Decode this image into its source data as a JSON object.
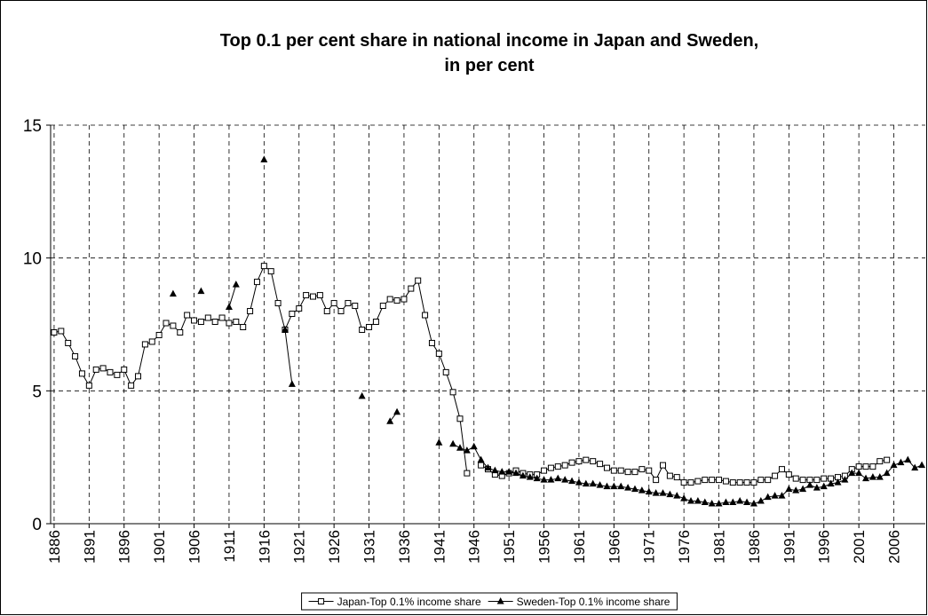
{
  "chart_data": {
    "type": "line",
    "title": [
      "Top 0.1 per cent share in national income in Japan and Sweden,",
      "in per cent"
    ],
    "categories": [
      "1886",
      null,
      null,
      null,
      null,
      "1891",
      null,
      null,
      null,
      null,
      "1896",
      null,
      null,
      null,
      null,
      "1901",
      null,
      null,
      null,
      null,
      "1906",
      null,
      null,
      null,
      null,
      "1911",
      null,
      null,
      null,
      null,
      "1916",
      null,
      null,
      null,
      null,
      "1921",
      null,
      null,
      null,
      null,
      "1926",
      null,
      null,
      null,
      null,
      "1931",
      null,
      null,
      null,
      null,
      "1936",
      null,
      null,
      null,
      null,
      "1941",
      null,
      null,
      null,
      null,
      "1946",
      null,
      null,
      null,
      null,
      "1951",
      null,
      null,
      null,
      null,
      "1956",
      null,
      null,
      null,
      null,
      "1961",
      null,
      null,
      null,
      null,
      "1966",
      null,
      null,
      null,
      null,
      "1971",
      null,
      null,
      null,
      null,
      "1976",
      null,
      null,
      null,
      null,
      "1981",
      null,
      null,
      null,
      null,
      "1986",
      null,
      null,
      null,
      null,
      "1991",
      null,
      null,
      null,
      null,
      "1996",
      null,
      null,
      null,
      null,
      "2001",
      null,
      null,
      null,
      null,
      "2006",
      null,
      null,
      null,
      null
    ],
    "series": [
      {
        "name": "Japan-Top 0.1% income share",
        "color": "#000000",
        "marker": "square",
        "values": [
          7.2,
          7.25,
          6.8,
          6.3,
          5.65,
          5.2,
          5.8,
          5.85,
          5.7,
          5.6,
          5.8,
          5.2,
          5.55,
          6.75,
          6.85,
          7.1,
          7.55,
          7.45,
          7.2,
          7.85,
          7.65,
          7.6,
          7.75,
          7.6,
          7.75,
          7.55,
          7.6,
          7.4,
          8.0,
          9.1,
          9.7,
          9.5,
          8.3,
          7.3,
          7.9,
          8.1,
          8.6,
          8.55,
          8.6,
          8.0,
          8.3,
          8.0,
          8.3,
          8.2,
          7.3,
          7.4,
          7.6,
          8.2,
          8.45,
          8.4,
          8.45,
          8.85,
          9.15,
          7.85,
          6.8,
          6.4,
          5.7,
          4.95,
          3.95,
          1.9,
          null,
          2.2,
          2.05,
          1.85,
          1.8,
          1.9,
          2.0,
          1.9,
          1.85,
          1.85,
          2.0,
          2.1,
          2.15,
          2.2,
          2.3,
          2.35,
          2.4,
          2.35,
          2.25,
          2.1,
          2.0,
          2.0,
          1.95,
          1.95,
          2.05,
          2.0,
          1.65,
          2.2,
          1.8,
          1.75,
          1.55,
          1.55,
          1.6,
          1.65,
          1.65,
          1.65,
          1.6,
          1.55,
          1.55,
          1.55,
          1.55,
          1.65,
          1.65,
          1.8,
          2.05,
          1.85,
          1.7,
          1.65,
          1.65,
          1.65,
          1.7,
          1.7,
          1.75,
          1.8,
          2.05,
          2.15,
          2.15,
          2.15,
          2.35,
          2.4,
          null,
          null,
          null,
          null,
          null
        ]
      },
      {
        "name": "Sweden-Top 0.1% income share",
        "color": "#000000",
        "marker": "triangle",
        "values": [
          null,
          null,
          null,
          null,
          null,
          null,
          null,
          null,
          null,
          null,
          null,
          null,
          null,
          null,
          null,
          null,
          null,
          8.65,
          null,
          null,
          null,
          8.75,
          null,
          null,
          null,
          8.15,
          9.0,
          null,
          null,
          null,
          13.7,
          null,
          null,
          7.3,
          5.25,
          null,
          null,
          null,
          null,
          null,
          null,
          null,
          null,
          null,
          4.8,
          null,
          null,
          null,
          3.85,
          4.2,
          null,
          null,
          null,
          null,
          null,
          3.05,
          null,
          3.0,
          2.85,
          2.75,
          2.9,
          2.4,
          2.1,
          2.0,
          1.95,
          1.95,
          1.9,
          1.8,
          1.75,
          1.7,
          1.65,
          1.65,
          1.7,
          1.65,
          1.6,
          1.55,
          1.5,
          1.5,
          1.45,
          1.4,
          1.4,
          1.4,
          1.35,
          1.3,
          1.25,
          1.2,
          1.15,
          1.15,
          1.1,
          1.05,
          0.95,
          0.85,
          0.85,
          0.8,
          0.75,
          0.75,
          0.8,
          0.8,
          0.85,
          0.8,
          0.75,
          0.85,
          1.0,
          1.05,
          1.05,
          1.3,
          1.25,
          1.3,
          1.45,
          1.35,
          1.4,
          1.5,
          1.55,
          1.65,
          1.9,
          1.9,
          1.7,
          1.75,
          1.75,
          1.9,
          2.2,
          2.3,
          2.4,
          2.1,
          2.2
        ]
      }
    ],
    "ylim": [
      0,
      15
    ],
    "yticks": [
      0,
      5,
      10,
      15
    ],
    "grid": true,
    "legend": "bottom"
  }
}
